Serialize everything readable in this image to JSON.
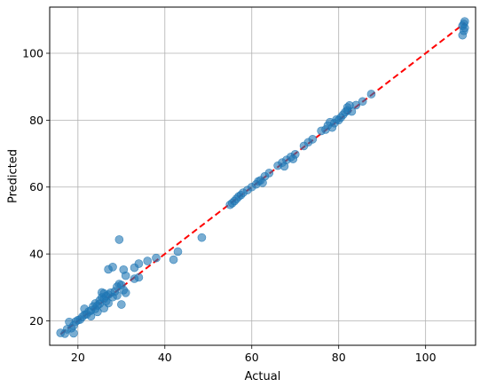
{
  "chart_data": {
    "type": "scatter",
    "title": "",
    "xlabel": "Actual",
    "ylabel": "Predicted",
    "xlim": [
      13.5,
      111.5
    ],
    "ylim": [
      12.7,
      113.8
    ],
    "grid": true,
    "x_ticks": [
      "20",
      "40",
      "60",
      "80",
      "100"
    ],
    "y_ticks": [
      "20",
      "40",
      "60",
      "80",
      "100"
    ],
    "x_tick_values": [
      20,
      40,
      60,
      80,
      100
    ],
    "y_tick_values": [
      20,
      40,
      60,
      80,
      100
    ],
    "point_color": "#1f77b4",
    "line_color": "#ff0000",
    "reference_line": {
      "style": "dashed",
      "x": [
        16,
        109
      ],
      "y": [
        16,
        109
      ]
    },
    "points": [
      [
        16,
        16.4
      ],
      [
        17,
        16.2
      ],
      [
        17.5,
        17.5
      ],
      [
        18,
        19.7
      ],
      [
        18.5,
        17.8
      ],
      [
        19,
        16.3
      ],
      [
        19,
        18.6
      ],
      [
        19.5,
        19.8
      ],
      [
        20,
        20.2
      ],
      [
        20.5,
        20.4
      ],
      [
        21,
        21.2
      ],
      [
        21.5,
        21.8
      ],
      [
        21.5,
        23.6
      ],
      [
        22,
        22.0
      ],
      [
        22.5,
        22.8
      ],
      [
        23,
        23.1
      ],
      [
        23,
        21.4
      ],
      [
        23.5,
        24.3
      ],
      [
        24,
        23.6
      ],
      [
        24,
        25.2
      ],
      [
        24.5,
        24.6
      ],
      [
        24.5,
        22.7
      ],
      [
        25,
        26.1
      ],
      [
        25,
        25.1
      ],
      [
        25.5,
        28.5
      ],
      [
        25.5,
        27.0
      ],
      [
        26,
        26.6
      ],
      [
        26,
        28.2
      ],
      [
        26,
        23.8
      ],
      [
        26.5,
        25.9
      ],
      [
        26.5,
        27.4
      ],
      [
        27,
        35.4
      ],
      [
        27,
        27.8
      ],
      [
        27,
        25.3
      ],
      [
        27.5,
        28.4
      ],
      [
        28,
        36.1
      ],
      [
        28,
        27.1
      ],
      [
        28.5,
        28.8
      ],
      [
        29,
        27.6
      ],
      [
        29,
        30.2
      ],
      [
        29.5,
        44.3
      ],
      [
        29.5,
        31.0
      ],
      [
        30,
        30.7
      ],
      [
        30,
        24.9
      ],
      [
        30.5,
        29.2
      ],
      [
        30.5,
        35.3
      ],
      [
        31,
        33.5
      ],
      [
        31,
        28.4
      ],
      [
        33,
        35.9
      ],
      [
        33,
        32.6
      ],
      [
        34,
        37.1
      ],
      [
        34,
        33.0
      ],
      [
        36,
        37.9
      ],
      [
        38,
        38.8
      ],
      [
        42,
        38.3
      ],
      [
        43,
        40.7
      ],
      [
        48.5,
        44.9
      ],
      [
        55,
        54.7
      ],
      [
        55.5,
        55.2
      ],
      [
        56,
        55.8
      ],
      [
        56.5,
        56.5
      ],
      [
        57,
        57.2
      ],
      [
        57.5,
        57.6
      ],
      [
        58,
        58.3
      ],
      [
        59,
        59.1
      ],
      [
        60,
        60.0
      ],
      [
        61,
        60.8
      ],
      [
        61.5,
        61.7
      ],
      [
        62,
        62.0
      ],
      [
        62.5,
        61.3
      ],
      [
        63,
        63.2
      ],
      [
        64,
        64.2
      ],
      [
        66,
        66.4
      ],
      [
        67,
        67.3
      ],
      [
        67.5,
        66.2
      ],
      [
        68,
        68.1
      ],
      [
        69,
        69.0
      ],
      [
        69.5,
        68.4
      ],
      [
        70,
        69.8
      ],
      [
        72,
        72.3
      ],
      [
        73,
        73.4
      ],
      [
        74,
        74.3
      ],
      [
        76,
        76.8
      ],
      [
        77,
        77.2
      ],
      [
        77.5,
        78.4
      ],
      [
        78,
        79.4
      ],
      [
        78.5,
        77.8
      ],
      [
        79,
        79.1
      ],
      [
        79.5,
        80.2
      ],
      [
        80,
        80.0
      ],
      [
        80.5,
        80.8
      ],
      [
        81,
        81.6
      ],
      [
        81.5,
        82.4
      ],
      [
        82,
        82.9
      ],
      [
        82,
        83.8
      ],
      [
        82.5,
        84.4
      ],
      [
        83,
        82.6
      ],
      [
        84,
        84.5
      ],
      [
        85.5,
        85.6
      ],
      [
        87.5,
        87.8
      ],
      [
        108.5,
        108.2
      ],
      [
        108.5,
        105.4
      ],
      [
        108.8,
        106.7
      ],
      [
        108.8,
        108.8
      ],
      [
        109,
        109.5
      ],
      [
        109,
        107.6
      ]
    ]
  }
}
